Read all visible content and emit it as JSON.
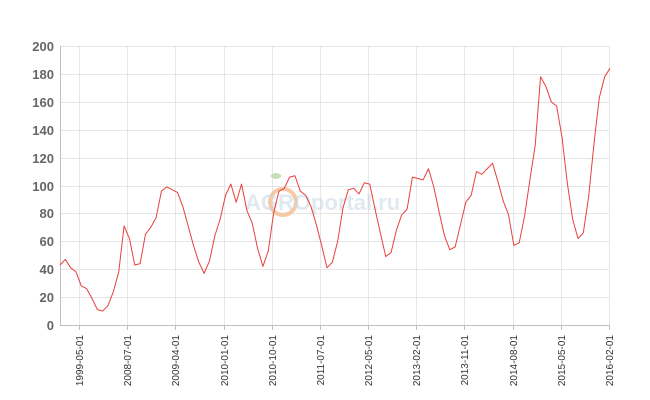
{
  "watermark": {
    "text": "AGROportal.ru",
    "accent_color": "#f0a060",
    "text_color": "#b8c8d8"
  },
  "chart_data": {
    "type": "line",
    "title": "",
    "xlabel": "",
    "ylabel": "",
    "ylim": [
      0,
      200
    ],
    "yticks": [
      "0",
      "20",
      "40",
      "60",
      "80",
      "100",
      "120",
      "140",
      "160",
      "180",
      "200"
    ],
    "grid": true,
    "legend": "none",
    "line_color": "#e8403c",
    "xticks": [
      "1999-05-01",
      "2008-07-01",
      "2009-04-01",
      "2010-01-01",
      "2010-10-01",
      "2011-07-01",
      "2012-05-01",
      "2013-02-01",
      "2013-11-01",
      "2014-08-01",
      "2015-05-01",
      "2016-02-01"
    ],
    "series": [
      {
        "values": [
          43,
          47,
          41,
          38,
          28,
          26,
          19,
          11,
          10,
          14,
          24,
          38,
          71,
          62,
          43,
          44,
          65,
          70,
          77,
          96,
          99,
          97,
          95,
          85,
          71,
          57,
          45,
          37,
          46,
          64,
          76,
          93,
          101,
          88,
          101,
          82,
          73,
          55,
          42,
          53,
          80,
          96,
          98,
          106,
          107,
          96,
          93,
          85,
          72,
          57,
          41,
          45,
          60,
          84,
          97,
          98,
          94,
          102,
          101,
          83,
          66,
          49,
          52,
          68,
          79,
          83,
          106,
          105,
          104,
          112,
          99,
          81,
          64,
          54,
          56,
          72,
          88,
          93,
          110,
          108,
          112,
          116,
          103,
          89,
          79,
          57,
          59,
          78,
          104,
          129,
          178,
          171,
          160,
          157,
          135,
          102,
          76,
          62,
          66,
          92,
          130,
          163,
          178,
          184
        ]
      }
    ]
  }
}
